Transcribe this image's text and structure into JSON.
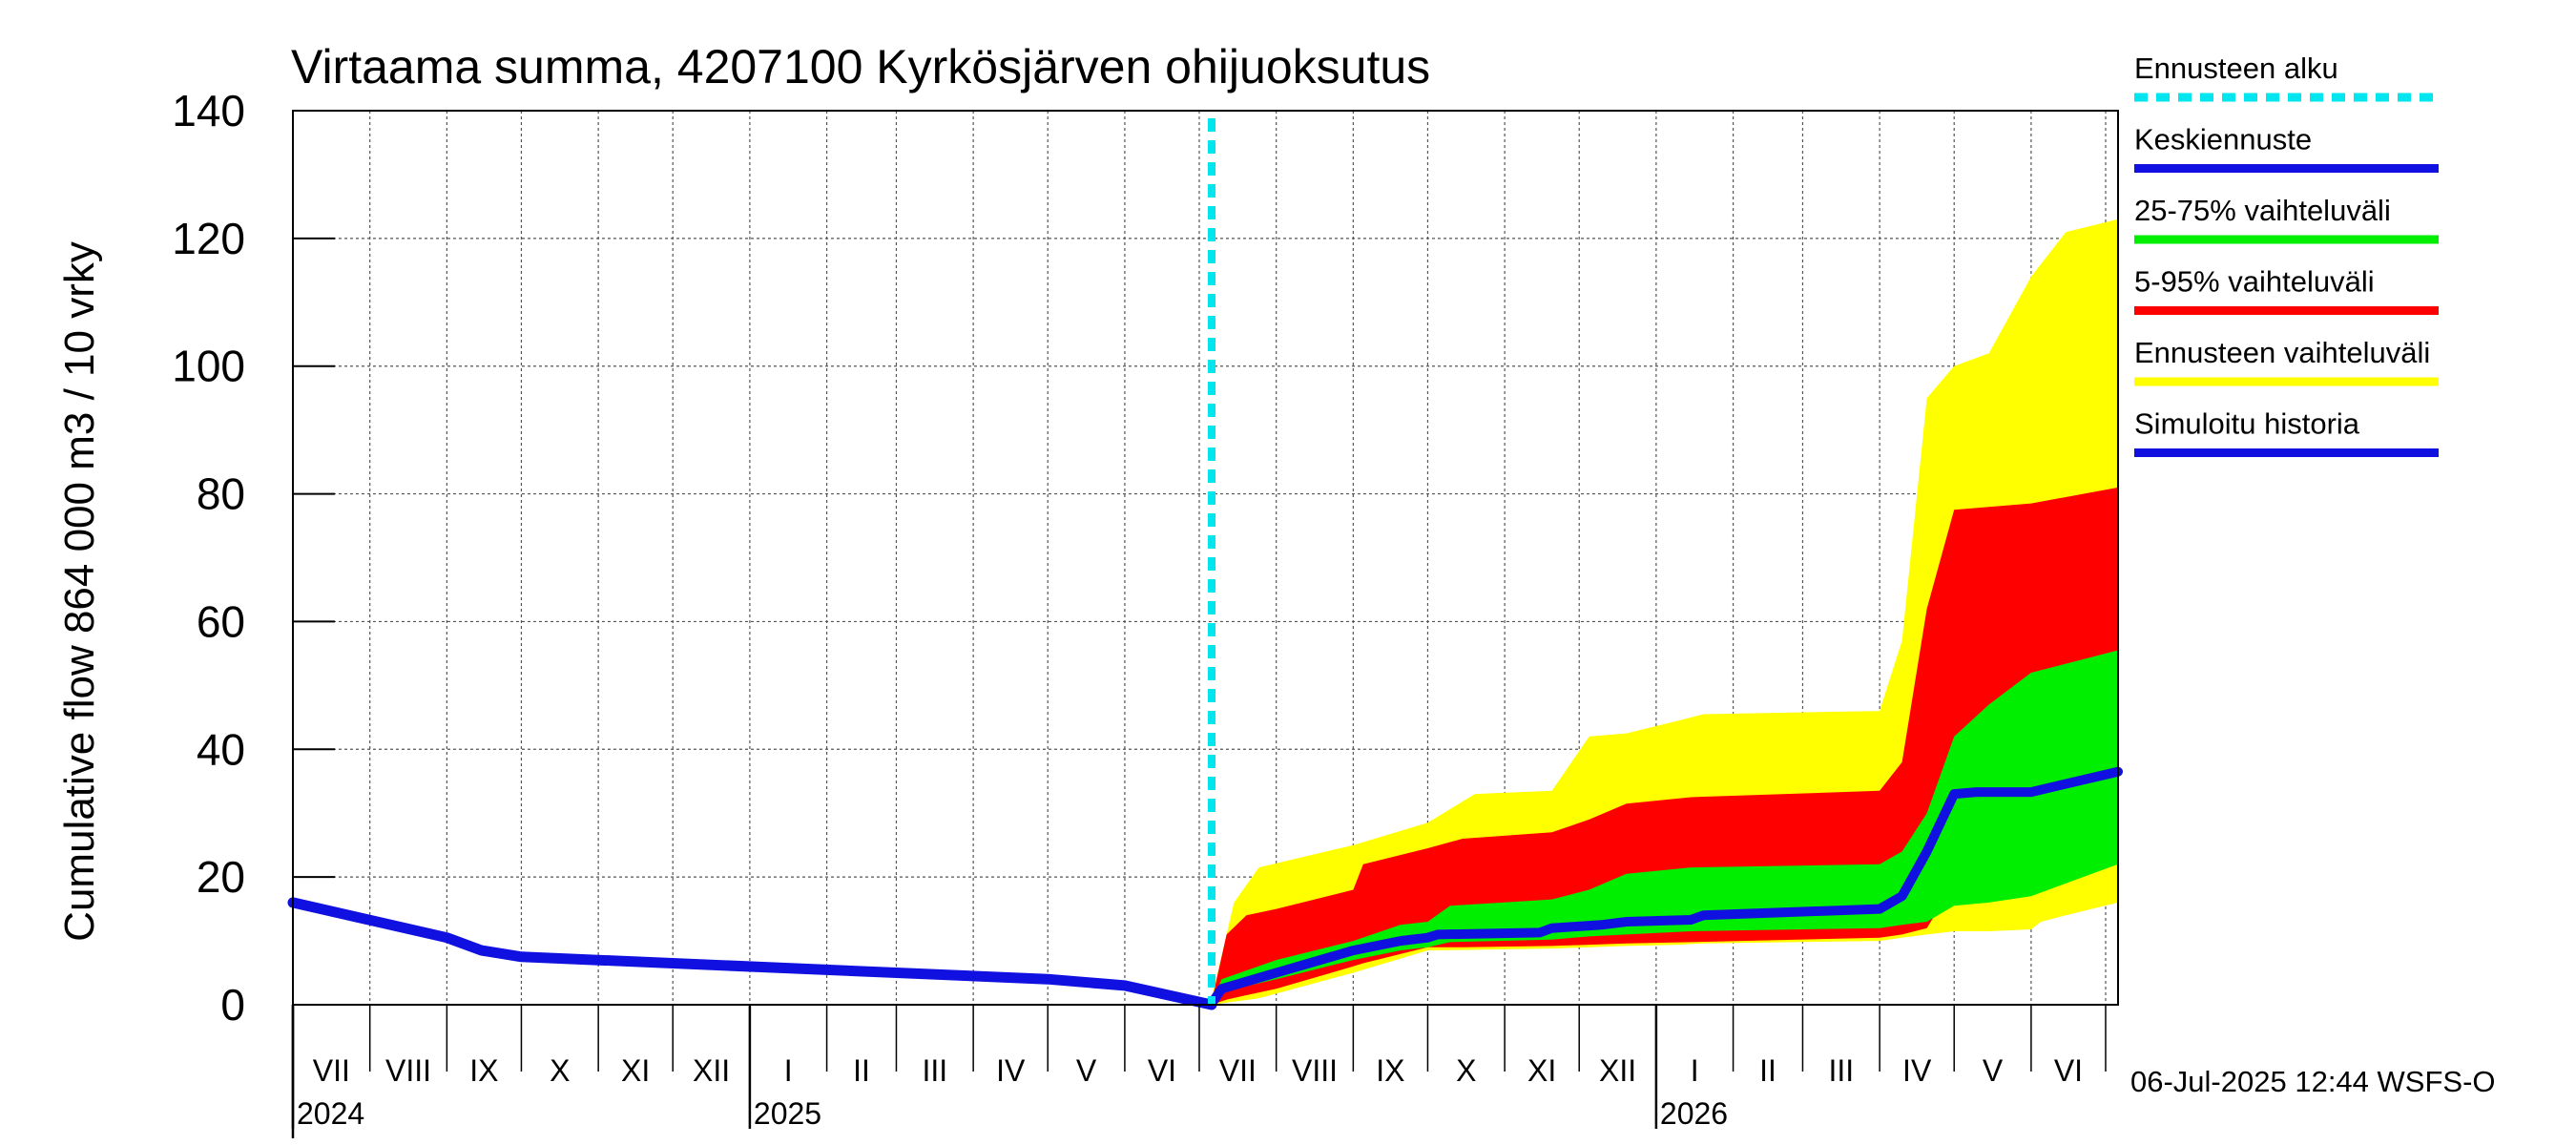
{
  "chart_data": {
    "type": "area",
    "title": "Virtaama summa, 4207100 Kyrkösjärven ohijuoksutus",
    "ylabel": "Cumulative flow    864 000 m3 / 10 vrky",
    "ylim": [
      0,
      140
    ],
    "yticks": [
      "0",
      "20",
      "40",
      "60",
      "80",
      "100",
      "120",
      "140"
    ],
    "ytick_values": [
      0,
      20,
      40,
      60,
      80,
      100,
      120,
      140
    ],
    "xlim": [
      "2024-07-01",
      "2026-07-06"
    ],
    "months": [
      "VII",
      "VIII",
      "IX",
      "X",
      "XI",
      "XII",
      "I",
      "II",
      "III",
      "IV",
      "V",
      "VI",
      "VII",
      "VIII",
      "IX",
      "X",
      "XI",
      "XII",
      "I",
      "II",
      "III",
      "IV",
      "V",
      "VI"
    ],
    "month_starts": [
      "2024-07-01",
      "2024-08-01",
      "2024-09-01",
      "2024-10-01",
      "2024-11-01",
      "2024-12-01",
      "2025-01-01",
      "2025-02-01",
      "2025-03-01",
      "2025-04-01",
      "2025-05-01",
      "2025-06-01",
      "2025-07-01",
      "2025-08-01",
      "2025-09-01",
      "2025-10-01",
      "2025-11-01",
      "2025-12-01",
      "2026-01-01",
      "2026-02-01",
      "2026-03-01",
      "2026-04-01",
      "2026-05-01",
      "2026-06-01",
      "2026-07-01"
    ],
    "years": [
      {
        "label": "2024",
        "date": "2024-07-01"
      },
      {
        "label": "2025",
        "date": "2025-01-01"
      },
      {
        "label": "2026",
        "date": "2026-01-01"
      }
    ],
    "forecast_start": "2025-07-06",
    "grid": true,
    "legend_placement": "right",
    "legend": [
      {
        "label": "Ennusteen alku",
        "color": "#00e5ee",
        "style": "dashed"
      },
      {
        "label": "Keskiennuste",
        "color": "#1010e0",
        "style": "solid"
      },
      {
        "label": "25-75% vaihteluväli",
        "color": "#00ee00",
        "style": "solid"
      },
      {
        "label": "5-95% vaihteluväli",
        "color": "#ff0000",
        "style": "solid"
      },
      {
        "label": "Ennusteen vaihteluväli",
        "color": "#ffff00",
        "style": "solid"
      },
      {
        "label": "Simuloitu historia",
        "color": "#1010e0",
        "style": "solid"
      }
    ],
    "history": {
      "x": [
        "2024-07-01",
        "2024-09-01",
        "2024-09-15",
        "2024-10-01",
        "2025-05-01",
        "2025-06-01",
        "2025-07-06"
      ],
      "y": [
        16,
        10.5,
        8.5,
        7.5,
        4.0,
        3.0,
        0
      ]
    },
    "median": {
      "x": [
        "2025-07-06",
        "2025-07-10",
        "2025-08-01",
        "2025-09-01",
        "2025-09-20",
        "2025-10-01",
        "2025-10-05",
        "2025-11-15",
        "2025-11-20",
        "2025-12-10",
        "2025-12-20",
        "2026-01-15",
        "2026-01-20",
        "2026-04-01",
        "2026-04-10",
        "2026-04-20",
        "2026-05-01",
        "2026-05-10",
        "2026-06-01",
        "2026-07-06"
      ],
      "y": [
        0.2,
        2.5,
        5.0,
        8.5,
        10.0,
        10.5,
        11.0,
        11.3,
        12.0,
        12.5,
        13.0,
        13.3,
        14.0,
        15.0,
        17.0,
        24.0,
        33.0,
        33.3,
        33.3,
        36.5
      ]
    },
    "band_25_75": {
      "x": [
        "2025-07-06",
        "2025-07-10",
        "2025-08-01",
        "2025-09-01",
        "2025-09-20",
        "2025-10-01",
        "2025-10-10",
        "2025-11-20",
        "2025-12-05",
        "2025-12-20",
        "2026-01-15",
        "2026-04-01",
        "2026-04-10",
        "2026-04-20",
        "2026-05-01",
        "2026-05-15",
        "2026-06-01",
        "2026-07-06"
      ],
      "upper": [
        0.3,
        4.0,
        7.0,
        10.0,
        12.5,
        13.0,
        15.5,
        16.5,
        18.0,
        20.5,
        21.5,
        22.0,
        24.0,
        30.0,
        42.0,
        47.0,
        52.0,
        55.5
      ],
      "lower": [
        0,
        2.0,
        4.0,
        7.0,
        8.5,
        9.0,
        9.8,
        10.2,
        10.7,
        11.0,
        11.5,
        12.0,
        12.5,
        13.0,
        15.5,
        16.0,
        17.0,
        22.0
      ]
    },
    "band_5_95": {
      "x": [
        "2025-07-06",
        "2025-07-12",
        "2025-07-20",
        "2025-08-01",
        "2025-09-01",
        "2025-09-05",
        "2025-10-01",
        "2025-10-15",
        "2025-11-20",
        "2025-12-05",
        "2025-12-20",
        "2026-01-15",
        "2026-04-01",
        "2026-04-10",
        "2026-04-20",
        "2026-05-01",
        "2026-06-01",
        "2026-07-06"
      ],
      "upper": [
        0.5,
        11.0,
        14.0,
        15.0,
        18.0,
        22.0,
        24.5,
        26.0,
        27.0,
        29.0,
        31.5,
        32.5,
        33.5,
        38.0,
        62.0,
        77.5,
        78.5,
        81.0
      ],
      "lower": [
        0,
        0.8,
        1.5,
        2.5,
        6.0,
        6.5,
        9.0,
        9.0,
        9.2,
        9.4,
        9.6,
        9.8,
        10.5,
        11.0,
        12.0,
        19.0,
        20.0,
        24.0
      ]
    },
    "band_total": {
      "x": [
        "2025-07-06",
        "2025-07-15",
        "2025-07-25",
        "2025-09-01",
        "2025-10-01",
        "2025-10-20",
        "2025-11-20",
        "2025-12-05",
        "2025-12-20",
        "2026-01-10",
        "2026-01-20",
        "2026-04-01",
        "2026-04-10",
        "2026-04-20",
        "2026-05-01",
        "2026-05-15",
        "2026-06-01",
        "2026-06-05",
        "2026-06-15",
        "2026-07-06"
      ],
      "upper": [
        1.0,
        16.0,
        21.5,
        25.0,
        28.5,
        33.0,
        33.5,
        42.0,
        42.5,
        44.5,
        45.5,
        46.0,
        57.0,
        95.0,
        100.0,
        102.0,
        114.0,
        116.0,
        121.0,
        123.0
      ],
      "lower": [
        0,
        0.5,
        1.0,
        5.0,
        8.5,
        8.6,
        8.8,
        9.0,
        9.2,
        9.4,
        9.6,
        10.0,
        10.5,
        11.0,
        11.5,
        11.5,
        11.8,
        13.0,
        14.0,
        16.0
      ]
    }
  },
  "footer": {
    "timestamp": "06-Jul-2025 12:44 WSFS-O"
  }
}
